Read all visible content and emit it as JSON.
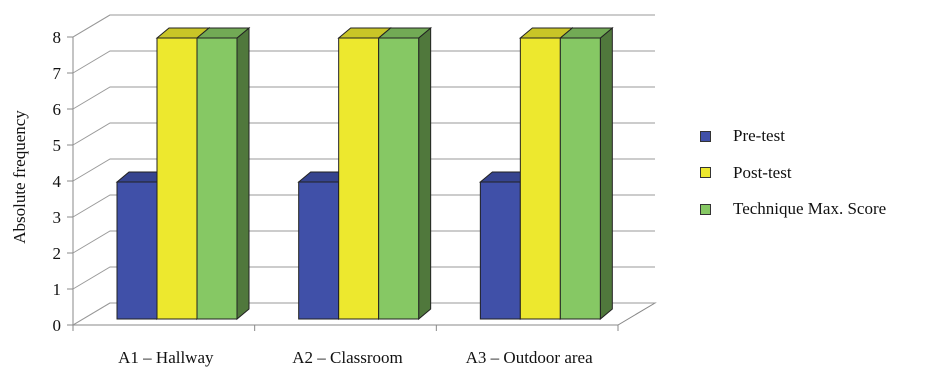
{
  "chart_data": {
    "type": "bar",
    "categories": [
      "A1 – Hallway",
      "A2 – Classroom",
      "A3 – Outdoor area"
    ],
    "series": [
      {
        "name": "Pre-test",
        "values": [
          4,
          4,
          4
        ],
        "color": "#4050A8"
      },
      {
        "name": "Post-test",
        "values": [
          8,
          8,
          8
        ],
        "color": "#EDE82E"
      },
      {
        "name": "Technique Max. Score",
        "values": [
          8,
          8,
          8
        ],
        "color": "#86C864"
      }
    ],
    "ylabel": "Absolute frequency",
    "yticks": [
      "0",
      "1",
      "2",
      "3",
      "4",
      "5",
      "6",
      "7",
      "8"
    ],
    "ylim": [
      0,
      8
    ],
    "grid": true,
    "legend_position": "right",
    "style": "3d-clustered-column"
  }
}
